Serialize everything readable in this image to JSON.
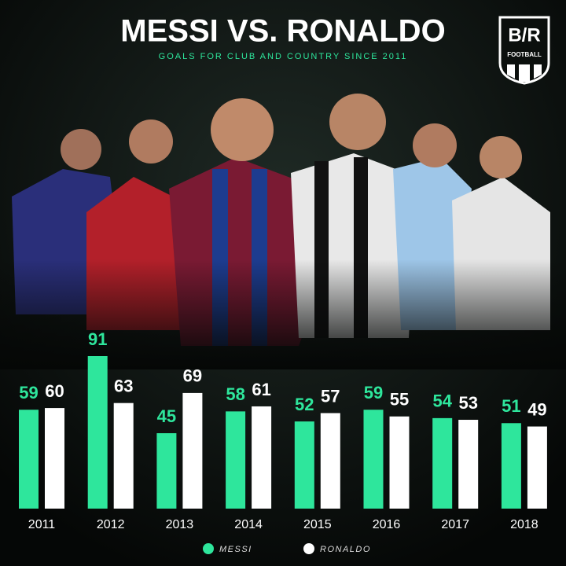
{
  "chart_data": {
    "type": "bar",
    "title": "MESSI VS. RONALDO",
    "subtitle": "GOALS FOR CLUB AND COUNTRY SINCE 2011",
    "logo": {
      "text": "B/R",
      "subtext": "FOOTBALL"
    },
    "categories": [
      "2011",
      "2012",
      "2013",
      "2014",
      "2015",
      "2016",
      "2017",
      "2018"
    ],
    "series": [
      {
        "name": "MESSI",
        "color": "#2ee69c",
        "values": [
          59,
          91,
          45,
          58,
          52,
          59,
          54,
          51
        ]
      },
      {
        "name": "RONALDO",
        "color": "#ffffff",
        "values": [
          60,
          63,
          69,
          61,
          57,
          55,
          53,
          49
        ]
      }
    ]
  }
}
